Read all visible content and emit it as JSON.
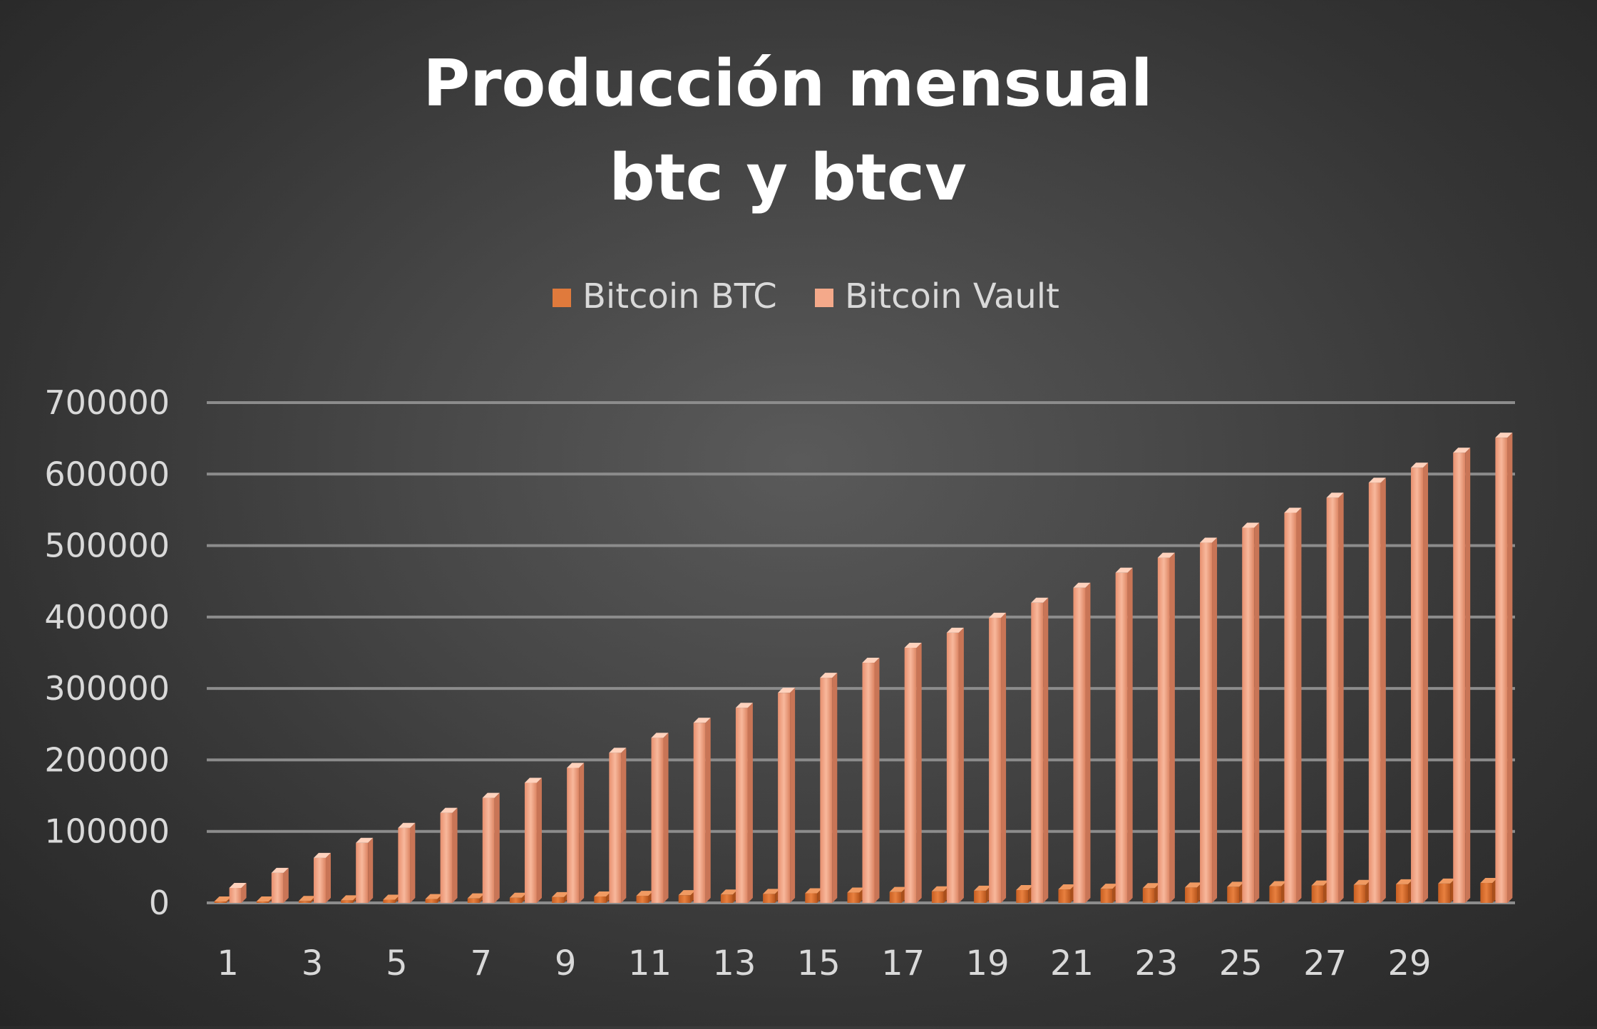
{
  "chart_data": {
    "type": "bar",
    "title_lines": [
      "Producción  mensual",
      "btc y btcv"
    ],
    "xlabel": "",
    "ylabel": "",
    "ylim": [
      0,
      700000
    ],
    "y_ticks": [
      0,
      100000,
      200000,
      300000,
      400000,
      500000,
      600000,
      700000
    ],
    "y_tick_labels": [
      "0",
      "100000",
      "200000",
      "300000",
      "400000",
      "500000",
      "600000",
      "700000"
    ],
    "grid": true,
    "legend_position": "top",
    "categories": [
      "1",
      "2",
      "3",
      "4",
      "5",
      "6",
      "7",
      "8",
      "9",
      "10",
      "11",
      "12",
      "13",
      "14",
      "15",
      "16",
      "17",
      "18",
      "19",
      "20",
      "21",
      "22",
      "23",
      "24",
      "25",
      "26",
      "27",
      "28",
      "29",
      "30",
      "31"
    ],
    "x_tick_labels_shown": [
      "1",
      "3",
      "5",
      "7",
      "9",
      "11",
      "13",
      "15",
      "17",
      "19",
      "21",
      "23",
      "25",
      "27",
      "29"
    ],
    "series": [
      {
        "name": "Bitcoin BTC",
        "color": "#e07a3c",
        "values": [
          900,
          1800,
          2700,
          3600,
          4500,
          5400,
          6300,
          7200,
          8100,
          9000,
          9900,
          10800,
          11700,
          12600,
          13500,
          14400,
          15300,
          16200,
          17100,
          18000,
          18900,
          19800,
          20700,
          21600,
          22500,
          23400,
          24300,
          25200,
          26100,
          27000,
          27900
        ]
      },
      {
        "name": "Bitcoin Vault",
        "color": "#f4a98a",
        "values": [
          21000,
          42000,
          63000,
          84000,
          105000,
          126000,
          147000,
          168000,
          189000,
          210000,
          231000,
          252000,
          273000,
          294000,
          315000,
          336000,
          357000,
          378000,
          399000,
          420000,
          441000,
          462000,
          483000,
          504000,
          525000,
          546000,
          567000,
          588000,
          609000,
          630000,
          651000
        ]
      }
    ]
  }
}
